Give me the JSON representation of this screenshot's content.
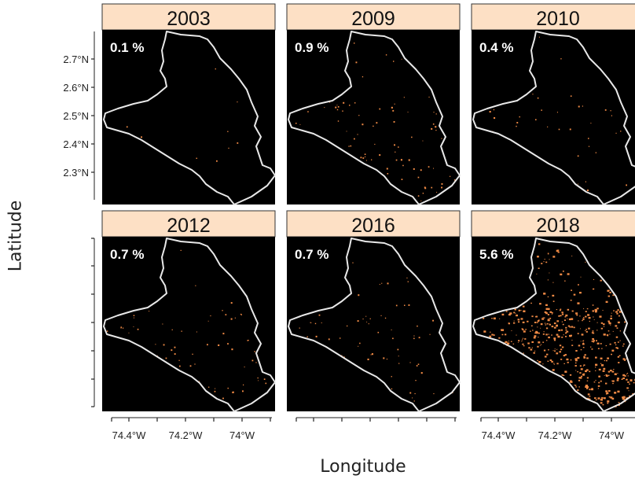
{
  "axis_labels": {
    "y": "Latitude",
    "x": "Longitude"
  },
  "y_ticks": [
    "2.7°N",
    "2.6°N",
    "2.5°N",
    "2.4°N",
    "2.3°N"
  ],
  "x_ticks": [
    "74.4°W",
    "74.2°W",
    "74°W"
  ],
  "colors": {
    "strip_bg": "#fde0c5",
    "map_bg": "#000000",
    "boundary": "#e8e8e8",
    "pixel": "#f08a45"
  },
  "chart_data": {
    "type": "map-panels",
    "panels": [
      {
        "year": "2003",
        "percent": "0.1 %",
        "density": 0.001
      },
      {
        "year": "2009",
        "percent": "0.9 %",
        "density": 0.009
      },
      {
        "year": "2010",
        "percent": "0.4 %",
        "density": 0.004
      },
      {
        "year": "2012",
        "percent": "0.7 %",
        "density": 0.007
      },
      {
        "year": "2016",
        "percent": "0.7 %",
        "density": 0.007
      },
      {
        "year": "2018",
        "percent": "5.6 %",
        "density": 0.056
      }
    ]
  }
}
